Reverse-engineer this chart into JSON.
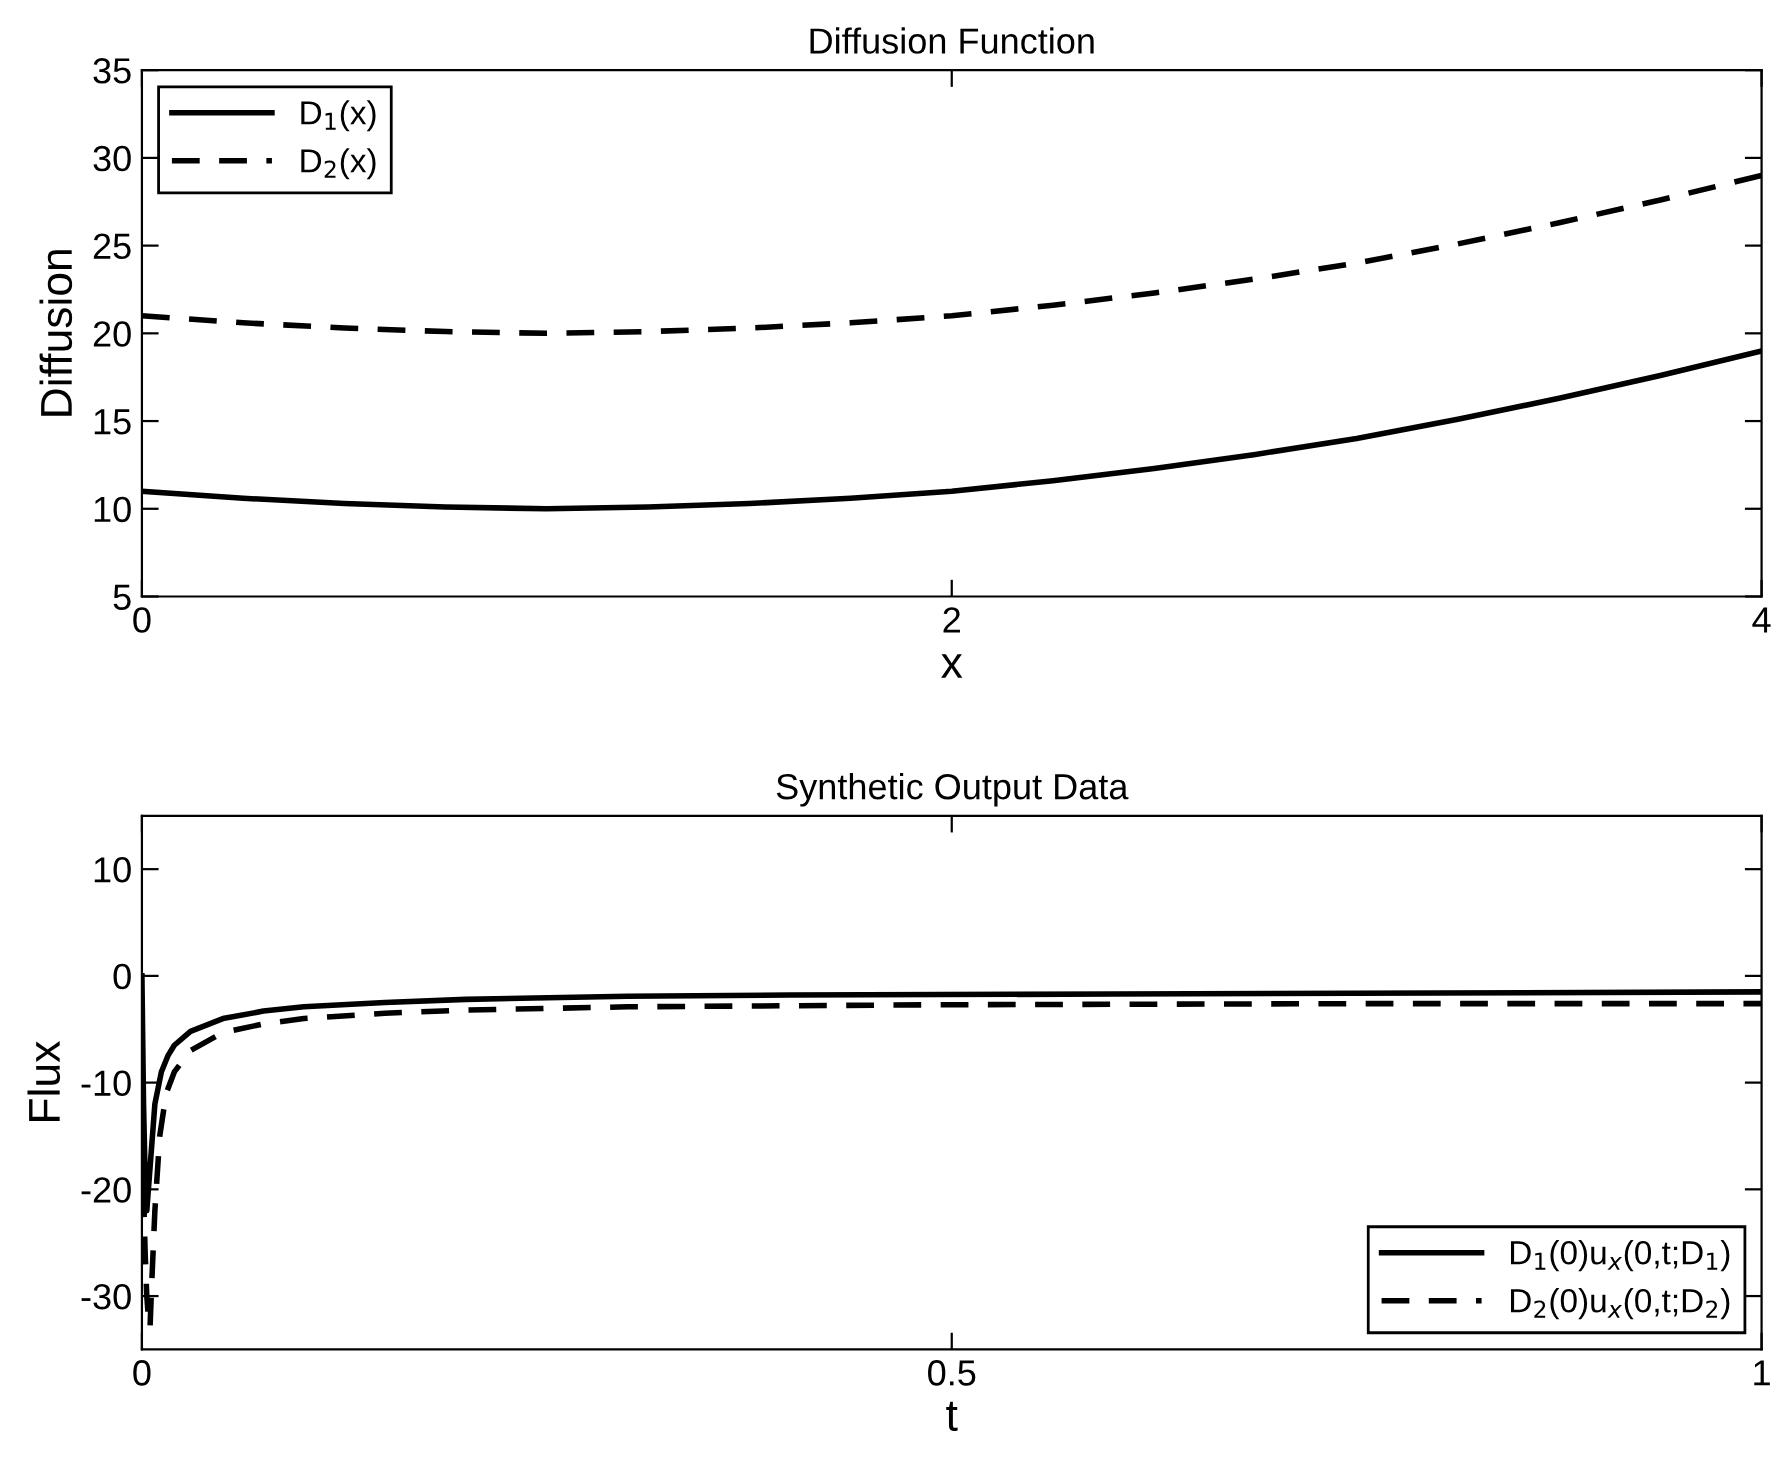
{
  "chart_data": [
    {
      "type": "line",
      "title": "Diffusion Function",
      "xlabel": "x",
      "ylabel": "Diffusion",
      "x": [
        0,
        0.25,
        0.5,
        0.75,
        1,
        1.25,
        1.5,
        1.75,
        2,
        2.25,
        2.5,
        2.75,
        3,
        3.25,
        3.5,
        3.75,
        4
      ],
      "series": [
        {
          "name": "D$_{1}$(x)",
          "color": "#000000",
          "line_style": "solid",
          "values": [
            11,
            10.6,
            10.3,
            10.1,
            10,
            10.1,
            10.3,
            10.6,
            11,
            11.6,
            12.3,
            13.1,
            14,
            15.1,
            16.3,
            17.6,
            19
          ]
        },
        {
          "name": "D$_{2}$(x)",
          "color": "#000000",
          "line_style": "dashed",
          "values": [
            21,
            20.6,
            20.3,
            20.1,
            20,
            20.1,
            20.3,
            20.6,
            21,
            21.6,
            22.3,
            23.1,
            24,
            25.1,
            26.3,
            27.6,
            29
          ]
        }
      ],
      "xlim": [
        0,
        4
      ],
      "xticks": [
        0,
        2,
        4
      ],
      "ylim": [
        5,
        35
      ],
      "yticks": [
        5,
        10,
        15,
        20,
        25,
        30,
        35
      ],
      "legend": "top left",
      "grid": false
    },
    {
      "type": "line",
      "title": "Synthetic Output Data",
      "xlabel": "t",
      "ylabel": "Flux",
      "series": [
        {
          "name": "D$_{1}$(0)u$_{x}$(0,t;D$_{1}$)",
          "color": "#000000",
          "line_style": "solid",
          "x": [
            0,
            0.001,
            0.002,
            0.003,
            0.005,
            0.008,
            0.012,
            0.016,
            0.02,
            0.03,
            0.05,
            0.075,
            0.1,
            0.15,
            0.2,
            0.3,
            0.4,
            0.6,
            0.8,
            1
          ],
          "values": [
            0,
            -12,
            -19,
            -22,
            -18,
            -12,
            -9,
            -7.5,
            -6.5,
            -5.2,
            -4,
            -3.3,
            -2.9,
            -2.5,
            -2.2,
            -1.9,
            -1.8,
            -1.7,
            -1.6,
            -1.5
          ]
        },
        {
          "name": "D$_{2}$(0)u$_{x}$(0,t;D$_{2}$)",
          "color": "#000000",
          "line_style": "dashed",
          "x": [
            0.001,
            0.002,
            0.003,
            0.004,
            0.005,
            0.006,
            0.008,
            0.011,
            0.015,
            0.02,
            0.03,
            0.05,
            0.075,
            0.1,
            0.15,
            0.2,
            0.3,
            0.5,
            0.75,
            1
          ],
          "values": [
            -20,
            -26,
            -30,
            -32,
            -33,
            -29,
            -22,
            -15,
            -11,
            -9,
            -7,
            -5.3,
            -4.5,
            -4,
            -3.5,
            -3.2,
            -2.9,
            -2.7,
            -2.6,
            -2.6
          ]
        }
      ],
      "xlim": [
        0,
        1
      ],
      "xticks": [
        0,
        0.5,
        1
      ],
      "ylim": [
        -35,
        15
      ],
      "yticks": [
        -30,
        -20,
        -10,
        0,
        10
      ],
      "legend": "bottom right",
      "grid": false
    }
  ]
}
